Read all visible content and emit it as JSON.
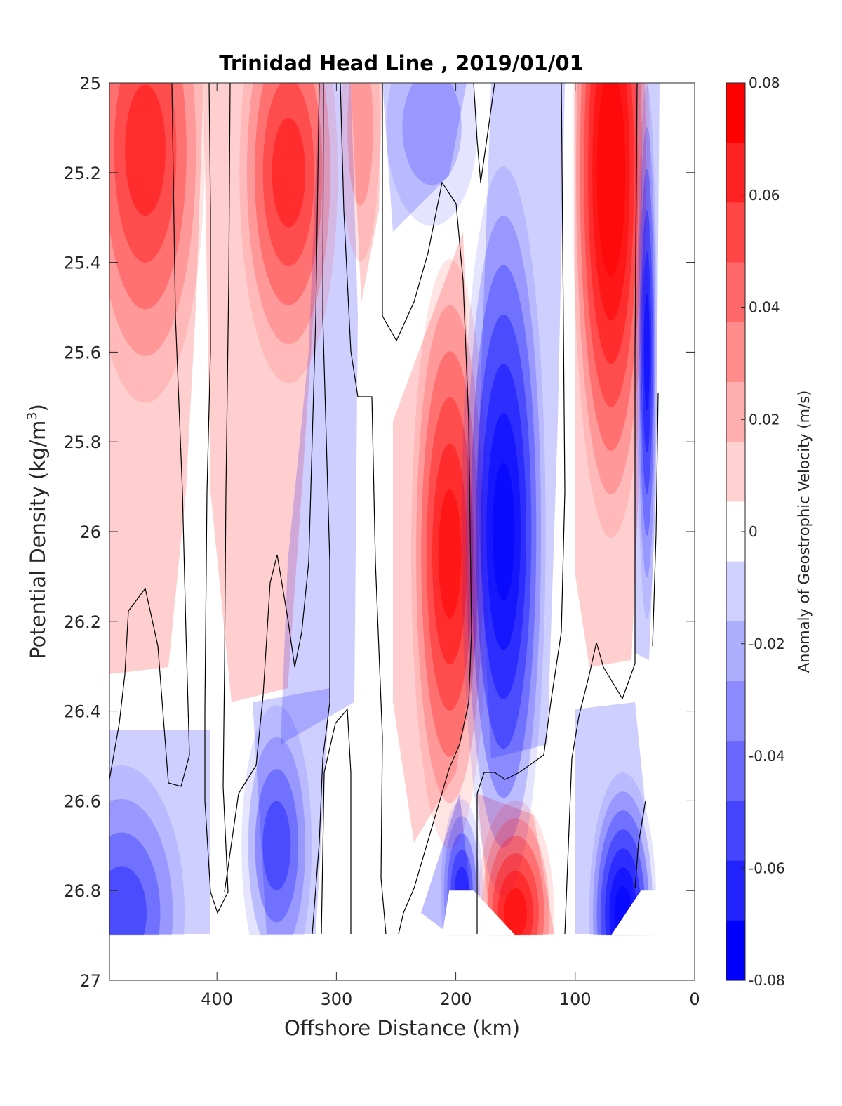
{
  "chart_data": {
    "type": "heatmap",
    "title": "Trinidad Head Line , 2019/01/01",
    "xlabel": "Offshore Distance (km)",
    "ylabel_main": "Potential Density (kg/m",
    "ylabel_sup": "3",
    "ylabel_close": ")",
    "xlim": [
      490,
      0
    ],
    "ylim": [
      25,
      27
    ],
    "y_reversed": true,
    "x_reversed": true,
    "x_ticks": [
      400,
      300,
      200,
      100,
      0
    ],
    "y_ticks": [
      25,
      25.2,
      25.4,
      25.6,
      25.8,
      26,
      26.2,
      26.4,
      26.6,
      26.8,
      27
    ],
    "x_tick_labels": [
      "400",
      "300",
      "200",
      "100",
      "0"
    ],
    "y_tick_labels": [
      "25",
      "25.2",
      "25.4",
      "25.6",
      "25.8",
      "26",
      "26.2",
      "26.4",
      "26.6",
      "26.8",
      "27"
    ],
    "colorbar": {
      "label": "Anomaly of Geostrophic Velocity (m/s)",
      "range": [
        -0.08,
        0.08
      ],
      "levels": [
        -0.08,
        -0.07,
        -0.06,
        -0.05,
        -0.04,
        -0.03,
        -0.02,
        -0.01,
        0.01,
        0.02,
        0.03,
        0.04,
        0.05,
        0.06,
        0.07,
        0.08
      ],
      "colors_top_to_bottom": [
        "#ff0000",
        "#ff2222",
        "#ff4545",
        "#ff6868",
        "#ff8b8b",
        "#ffaeae",
        "#ffd1d1",
        "#ffffff",
        "#d1d1ff",
        "#aeaeff",
        "#8b8bff",
        "#6868ff",
        "#4545ff",
        "#2222ff",
        "#0000ff"
      ],
      "ticks": [
        0.08,
        0.06,
        0.04,
        0.02,
        0,
        -0.02,
        -0.04,
        -0.06,
        -0.08
      ],
      "tick_labels": [
        "0.08",
        "0.06",
        "0.04",
        "0.02",
        "0",
        "-0.02",
        "-0.04",
        "-0.06",
        "-0.08"
      ]
    },
    "grid": false,
    "positive_color": "#ff0000",
    "negative_color": "#0000ff",
    "velocity_cores": [
      {
        "x": 460,
        "y": 25.15,
        "value": 0.05
      },
      {
        "x": 340,
        "y": 25.2,
        "value": 0.05
      },
      {
        "x": 280,
        "y": 25.1,
        "value": 0.02
      },
      {
        "x": 220,
        "y": 25.1,
        "value": -0.02
      },
      {
        "x": 205,
        "y": 26.05,
        "value": 0.06
      },
      {
        "x": 160,
        "y": 26.0,
        "value": -0.07
      },
      {
        "x": 70,
        "y": 25.2,
        "value": 0.08
      },
      {
        "x": 40,
        "y": 25.6,
        "value": -0.06
      },
      {
        "x": 150,
        "y": 26.85,
        "value": 0.06
      },
      {
        "x": 60,
        "y": 26.85,
        "value": -0.07
      },
      {
        "x": 480,
        "y": 26.85,
        "value": -0.04
      },
      {
        "x": 350,
        "y": 26.7,
        "value": -0.04
      },
      {
        "x": 195,
        "y": 26.8,
        "value": -0.05
      }
    ],
    "data_coverage": {
      "y_max_main": 26.9,
      "y_max_shelf": 26.8,
      "shelf_gap_x": [
        185,
        150
      ]
    }
  }
}
